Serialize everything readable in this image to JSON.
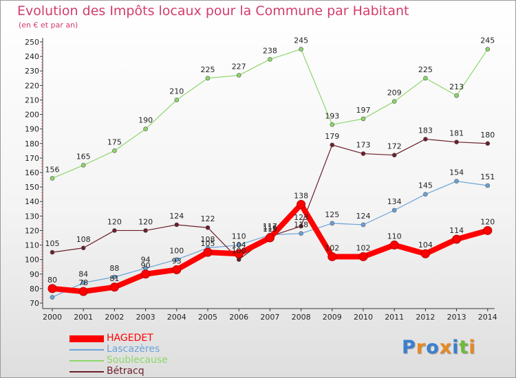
{
  "chart_data": {
    "type": "line",
    "title": "Evolution des Impôts locaux pour la Commune par Habitant",
    "subtitle": "(en € et par an)",
    "categories": [
      "2000",
      "2001",
      "2002",
      "2003",
      "2004",
      "2005",
      "2006",
      "2007",
      "2008",
      "2009",
      "2010",
      "2011",
      "2012",
      "2013",
      "2014"
    ],
    "y_ticks": [
      "70",
      "80",
      "90",
      "100",
      "110",
      "120",
      "130",
      "140",
      "150",
      "160",
      "170",
      "180",
      "190",
      "200",
      "210",
      "220",
      "230",
      "240",
      "250"
    ],
    "ylim": [
      70,
      250
    ],
    "grid": false,
    "legend_position": "bottom-left",
    "series": [
      {
        "name": "HAGEDET",
        "color": "#ff0000",
        "values": [
          80,
          78,
          81,
          90,
          93,
          105,
          104,
          115,
          138,
          102,
          102,
          110,
          104,
          114,
          120
        ],
        "labels": [
          "80",
          "78",
          "81",
          "90",
          "93",
          "105",
          "104",
          "115",
          "138",
          "102",
          "102",
          "110",
          "104",
          "114",
          "120"
        ]
      },
      {
        "name": "Lascazères",
        "color": "#6aa2d8",
        "values": [
          74,
          84,
          88,
          94,
          100,
          108,
          110,
          117,
          118,
          125,
          124,
          134,
          145,
          154,
          151
        ],
        "labels": [
          "",
          "84",
          "88",
          "94",
          "100",
          "108",
          "110",
          "117",
          "118",
          "125",
          "124",
          "134",
          "145",
          "154",
          "151"
        ]
      },
      {
        "name": "Soublecause",
        "color": "#8cd66a",
        "values": [
          156,
          165,
          175,
          190,
          210,
          225,
          227,
          238,
          245,
          193,
          197,
          209,
          225,
          213,
          245
        ],
        "labels": [
          "156",
          "165",
          "175",
          "190",
          "210",
          "225",
          "227",
          "238",
          "245",
          "193",
          "197",
          "209",
          "225",
          "213",
          "245"
        ]
      },
      {
        "name": "Bétracq",
        "color": "#6b1e2a",
        "values": [
          105,
          108,
          120,
          120,
          124,
          122,
          100,
          116,
          123,
          179,
          173,
          172,
          183,
          181,
          180
        ],
        "labels": [
          "105",
          "108",
          "120",
          "120",
          "124",
          "122",
          "100",
          "116",
          "123",
          "179",
          "173",
          "172",
          "183",
          "181",
          "180"
        ]
      }
    ]
  },
  "legend": {
    "items": [
      {
        "label": "HAGEDET",
        "color": "#ff0000"
      },
      {
        "label": "Lascazères",
        "color": "#6aa2d8"
      },
      {
        "label": "Soublecause",
        "color": "#8cd66a"
      },
      {
        "label": "Bétracq",
        "color": "#6b1e2a"
      }
    ]
  },
  "logo": {
    "letters": [
      "P",
      "r",
      "o",
      "x",
      "i",
      "t",
      "i"
    ],
    "colors": [
      "#3a7fd0",
      "#e8891f",
      "#3a7fd0",
      "#e8891f",
      "#3a7fd0",
      "#6cbb3c",
      "#e8891f"
    ]
  }
}
